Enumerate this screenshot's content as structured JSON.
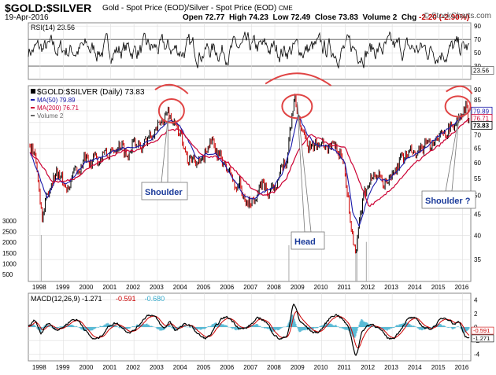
{
  "header": {
    "symbol": "$GOLD:$SILVER",
    "description": "Gold - Spot Price (EOD)/Silver - Spot Price (EOD)",
    "exchange": "CME",
    "date": "19-Apr-2016",
    "open_label": "Open",
    "open": "72.77",
    "high_label": "High",
    "high": "74.23",
    "low_label": "Low",
    "low": "72.49",
    "close_label": "Close",
    "close": "73.83",
    "volume_label": "Volume",
    "volume": "2",
    "chg_label": "Chg",
    "chg": "-2.20 (-2.90%)",
    "brand": "© StockCharts.com"
  },
  "colors": {
    "price": "#000000",
    "up": "#000000",
    "down": "#cc0000",
    "ma50": "#1a1aaa",
    "ma200": "#cc0033",
    "annotation": "#e04444",
    "callout_text": "#1a3a9a",
    "macd": "#000000",
    "signal": "#cc0000",
    "histogram": "#33aacc",
    "panel_border": "#888888",
    "grid": "#dddddd"
  },
  "chart_data": [
    {
      "type": "line",
      "panel": "RSI",
      "legend": "RSI(14) 23.56",
      "current_value": "23.56",
      "y_ticks": [
        30,
        50,
        70,
        90
      ],
      "ylim": [
        10,
        95
      ],
      "reference_lines": [
        30,
        70
      ]
    },
    {
      "type": "line",
      "panel": "price",
      "title": "$GOLD:$SILVER (Daily) 73.83",
      "legend": [
        {
          "name": "$GOLD:$SILVER (Daily) 73.83",
          "color": "#000000"
        },
        {
          "name": "MA(50) 79.89",
          "color": "#1a1aaa"
        },
        {
          "name": "MA(200) 76.71",
          "color": "#cc0033"
        },
        {
          "name": "Volume 2",
          "color": "#666666"
        }
      ],
      "scale": "log",
      "ylim": [
        31,
        92
      ],
      "y_ticks": [
        35,
        40,
        45,
        50,
        55,
        60,
        65,
        70,
        75,
        80,
        85,
        90
      ],
      "volume_ticks": [
        "500",
        "1000",
        "1500",
        "2000",
        "2500",
        "3000"
      ],
      "x_ticks": [
        "1998",
        "1999",
        "2000",
        "2001",
        "2002",
        "2003",
        "2004",
        "2005",
        "2006",
        "2007",
        "2008",
        "2009",
        "2010",
        "2011",
        "2012",
        "2013",
        "2014",
        "2015",
        "2016"
      ],
      "xlim": [
        1997.5,
        2016.35
      ],
      "tags": [
        {
          "text": "79.89",
          "value": 79.89,
          "color": "#1a1aaa"
        },
        {
          "text": "76.71",
          "value": 76.71,
          "color": "#cc0033"
        },
        {
          "text": "73.83",
          "value": 73.83,
          "color": "#000000"
        }
      ],
      "series": [
        {
          "name": "price",
          "x": [
            1997.5,
            1997.75,
            1997.95,
            1998.1,
            1998.3,
            1998.5,
            1998.7,
            1998.9,
            1999.1,
            1999.3,
            1999.5,
            1999.7,
            1999.9,
            2000.1,
            2000.3,
            2000.5,
            2000.7,
            2000.9,
            2001.1,
            2001.3,
            2001.5,
            2001.7,
            2001.9,
            2002.1,
            2002.3,
            2002.5,
            2002.7,
            2002.9,
            2003.1,
            2003.3,
            2003.45,
            2003.6,
            2003.8,
            2004.0,
            2004.15,
            2004.3,
            2004.5,
            2004.7,
            2004.9,
            2005.1,
            2005.3,
            2005.5,
            2005.7,
            2005.9,
            2006.1,
            2006.3,
            2006.5,
            2006.7,
            2006.9,
            2007.1,
            2007.3,
            2007.5,
            2007.7,
            2007.9,
            2008.1,
            2008.3,
            2008.5,
            2008.7,
            2008.85,
            2008.95,
            2009.05,
            2009.2,
            2009.4,
            2009.6,
            2009.8,
            2010.0,
            2010.2,
            2010.4,
            2010.6,
            2010.8,
            2010.95,
            2011.1,
            2011.25,
            2011.35,
            2011.45,
            2011.6,
            2011.8,
            2012.0,
            2012.2,
            2012.4,
            2012.6,
            2012.8,
            2013.0,
            2013.2,
            2013.4,
            2013.6,
            2013.8,
            2014.0,
            2014.2,
            2014.4,
            2014.6,
            2014.8,
            2015.0,
            2015.2,
            2015.4,
            2015.6,
            2015.8,
            2016.0,
            2016.15,
            2016.3
          ],
          "values": [
            66,
            64,
            52,
            44,
            50,
            54,
            57,
            55,
            52,
            54,
            58,
            57,
            62,
            59,
            62,
            60,
            64,
            62,
            64,
            66,
            66,
            62,
            66,
            68,
            64,
            68,
            70,
            72,
            74,
            77,
            80,
            76,
            73,
            70,
            66,
            60,
            62,
            60,
            60,
            65,
            68,
            63,
            62,
            58,
            57,
            52,
            54,
            48,
            48,
            49,
            51,
            54,
            50,
            52,
            54,
            58,
            60,
            76,
            86,
            80,
            74,
            70,
            66,
            65,
            67,
            68,
            65,
            66,
            66,
            62,
            60,
            50,
            42,
            39,
            35,
            43,
            50,
            54,
            56,
            56,
            53,
            54,
            56,
            58,
            62,
            62,
            64,
            62,
            64,
            66,
            66,
            68,
            70,
            70,
            72,
            74,
            76,
            78,
            82,
            74
          ]
        },
        {
          "name": "MA(50)",
          "x": [
            1997.5,
            1998.0,
            1998.3,
            1998.7,
            1999.1,
            1999.5,
            1999.9,
            2000.3,
            2000.7,
            2001.1,
            2001.5,
            2001.9,
            2002.3,
            2002.7,
            2003.1,
            2003.5,
            2003.9,
            2004.3,
            2004.7,
            2005.1,
            2005.5,
            2005.9,
            2006.3,
            2006.7,
            2007.1,
            2007.5,
            2007.9,
            2008.3,
            2008.7,
            2009.0,
            2009.4,
            2009.8,
            2010.2,
            2010.6,
            2011.0,
            2011.3,
            2011.6,
            2012.0,
            2012.4,
            2012.8,
            2013.2,
            2013.6,
            2014.0,
            2014.4,
            2014.8,
            2015.2,
            2015.6,
            2016.0,
            2016.3
          ],
          "values": [
            65,
            55,
            49,
            55,
            53,
            56,
            60,
            61,
            62,
            64,
            65,
            65,
            66,
            68,
            72,
            76,
            74,
            68,
            61,
            63,
            63,
            59,
            54,
            50,
            49,
            51,
            52,
            56,
            66,
            78,
            70,
            66,
            66,
            64,
            60,
            46,
            42,
            50,
            55,
            54,
            57,
            61,
            63,
            65,
            68,
            71,
            74,
            78,
            79.89
          ]
        },
        {
          "name": "MA(200)",
          "x": [
            1997.5,
            1998.0,
            1998.5,
            1999.0,
            1999.5,
            2000.0,
            2000.5,
            2001.0,
            2001.5,
            2002.0,
            2002.5,
            2003.0,
            2003.5,
            2004.0,
            2004.5,
            2005.0,
            2005.5,
            2006.0,
            2006.5,
            2007.0,
            2007.5,
            2008.0,
            2008.5,
            2009.0,
            2009.5,
            2010.0,
            2010.5,
            2011.0,
            2011.5,
            2012.0,
            2012.5,
            2013.0,
            2013.5,
            2014.0,
            2014.5,
            2015.0,
            2015.5,
            2016.0,
            2016.3
          ],
          "values": [
            64,
            60,
            54,
            54,
            55,
            58,
            60,
            62,
            64,
            64,
            66,
            68,
            72,
            72,
            66,
            62,
            62,
            60,
            56,
            52,
            50,
            51,
            55,
            64,
            70,
            68,
            66,
            65,
            56,
            47,
            49,
            52,
            56,
            60,
            63,
            66,
            70,
            74,
            76.71
          ]
        }
      ]
    },
    {
      "type": "line",
      "panel": "MACD",
      "legend": [
        {
          "name": "MACD(12,26,9)",
          "value": "-1.271",
          "color": "#000000"
        },
        {
          "name": "signal",
          "value": "-0.591",
          "color": "#cc0000"
        },
        {
          "name": "histogram",
          "value": "-0.680",
          "color": "#33aacc"
        }
      ],
      "y_ticks": [
        -4,
        -2,
        0,
        2,
        4
      ],
      "ylim": [
        -5,
        5
      ],
      "tags": [
        "-0.591",
        "-1.271"
      ],
      "x_ticks": [
        "1998",
        "1999",
        "2000",
        "2001",
        "2002",
        "2003",
        "2004",
        "2005",
        "2006",
        "2007",
        "2008",
        "2009",
        "2010",
        "2011",
        "2012",
        "2013",
        "2014",
        "2015",
        "2016"
      ]
    }
  ],
  "annotations": {
    "shoulder_left": "Shoulder",
    "head": "Head",
    "shoulder_right": "Shoulder ?"
  }
}
